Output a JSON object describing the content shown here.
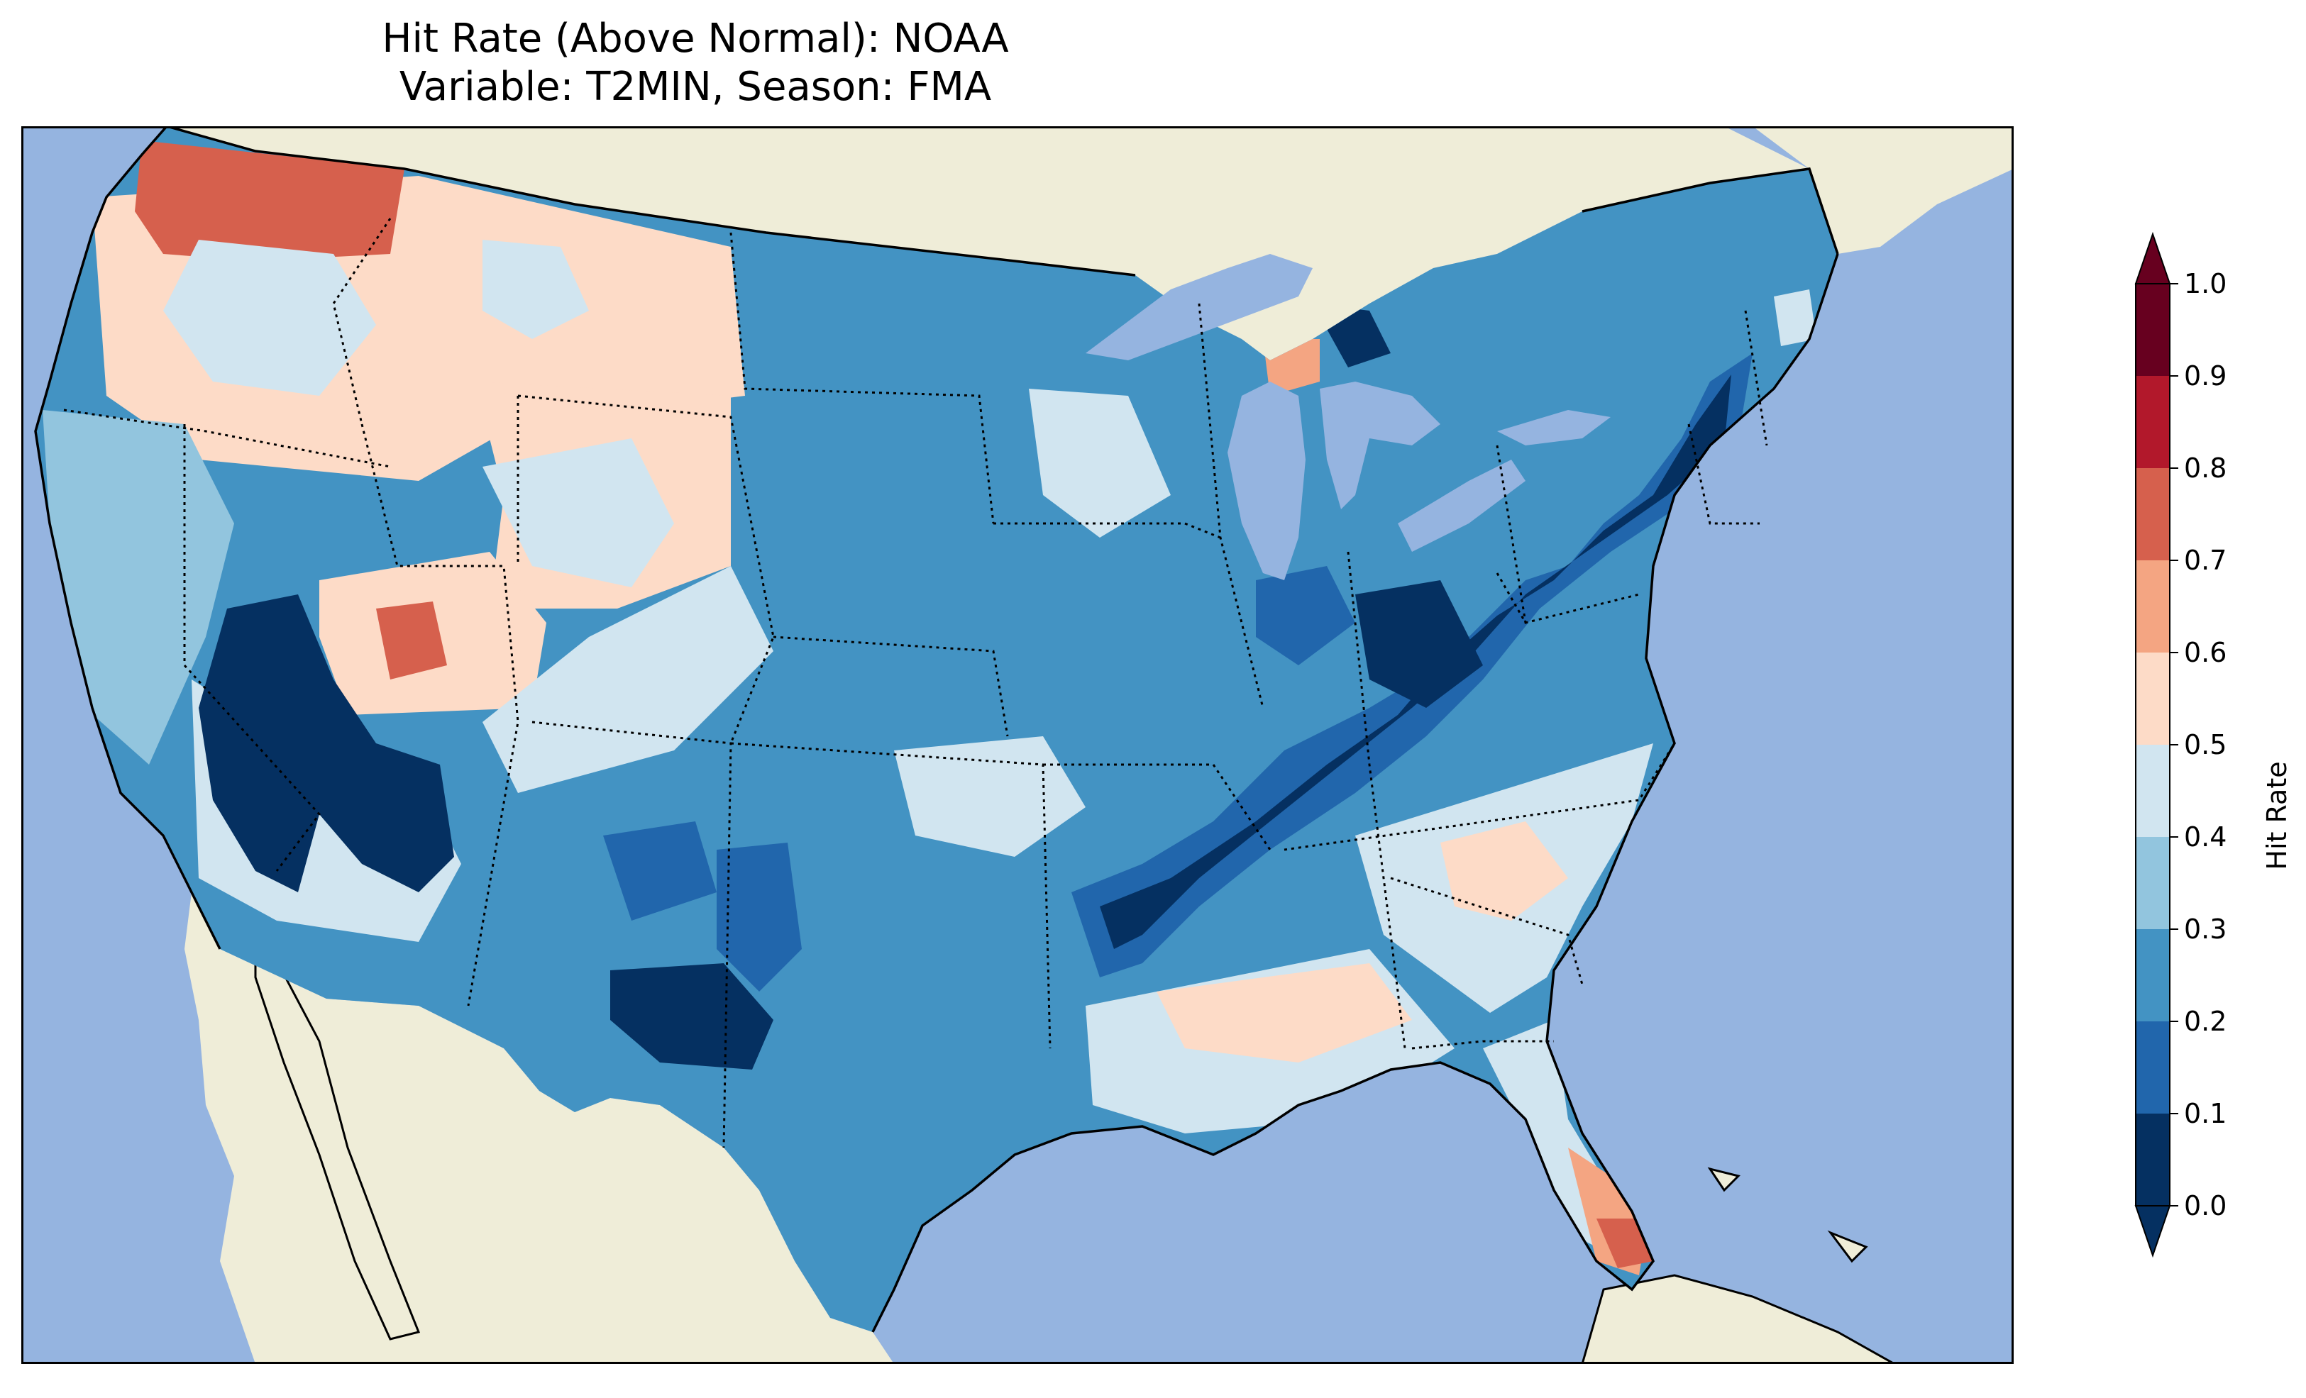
{
  "title": {
    "line1": "Hit Rate (Above Normal): NOAA",
    "line2": "Variable: T2MIN, Season: FMA"
  },
  "colors": {
    "ocean": "#95b4e0",
    "land": "#efedd8",
    "lake": "#95b4e0",
    "border": "#000000"
  },
  "colorbar": {
    "label": "Hit Rate",
    "ticks": [
      "0.0",
      "0.1",
      "0.2",
      "0.3",
      "0.4",
      "0.5",
      "0.6",
      "0.7",
      "0.8",
      "0.9",
      "1.0"
    ],
    "colors": [
      "#053061",
      "#2166ac",
      "#4393c3",
      "#92c5de",
      "#d1e5f0",
      "#fddbc7",
      "#f4a582",
      "#d6604d",
      "#b2182b",
      "#67001f"
    ],
    "extend": "both"
  },
  "map": {
    "projection": "lambert-conformal",
    "region": "CONUS",
    "bins": [
      0.0,
      0.1,
      0.2,
      0.3,
      0.4,
      0.5,
      0.6,
      0.7,
      0.8,
      0.9,
      1.0
    ]
  }
}
